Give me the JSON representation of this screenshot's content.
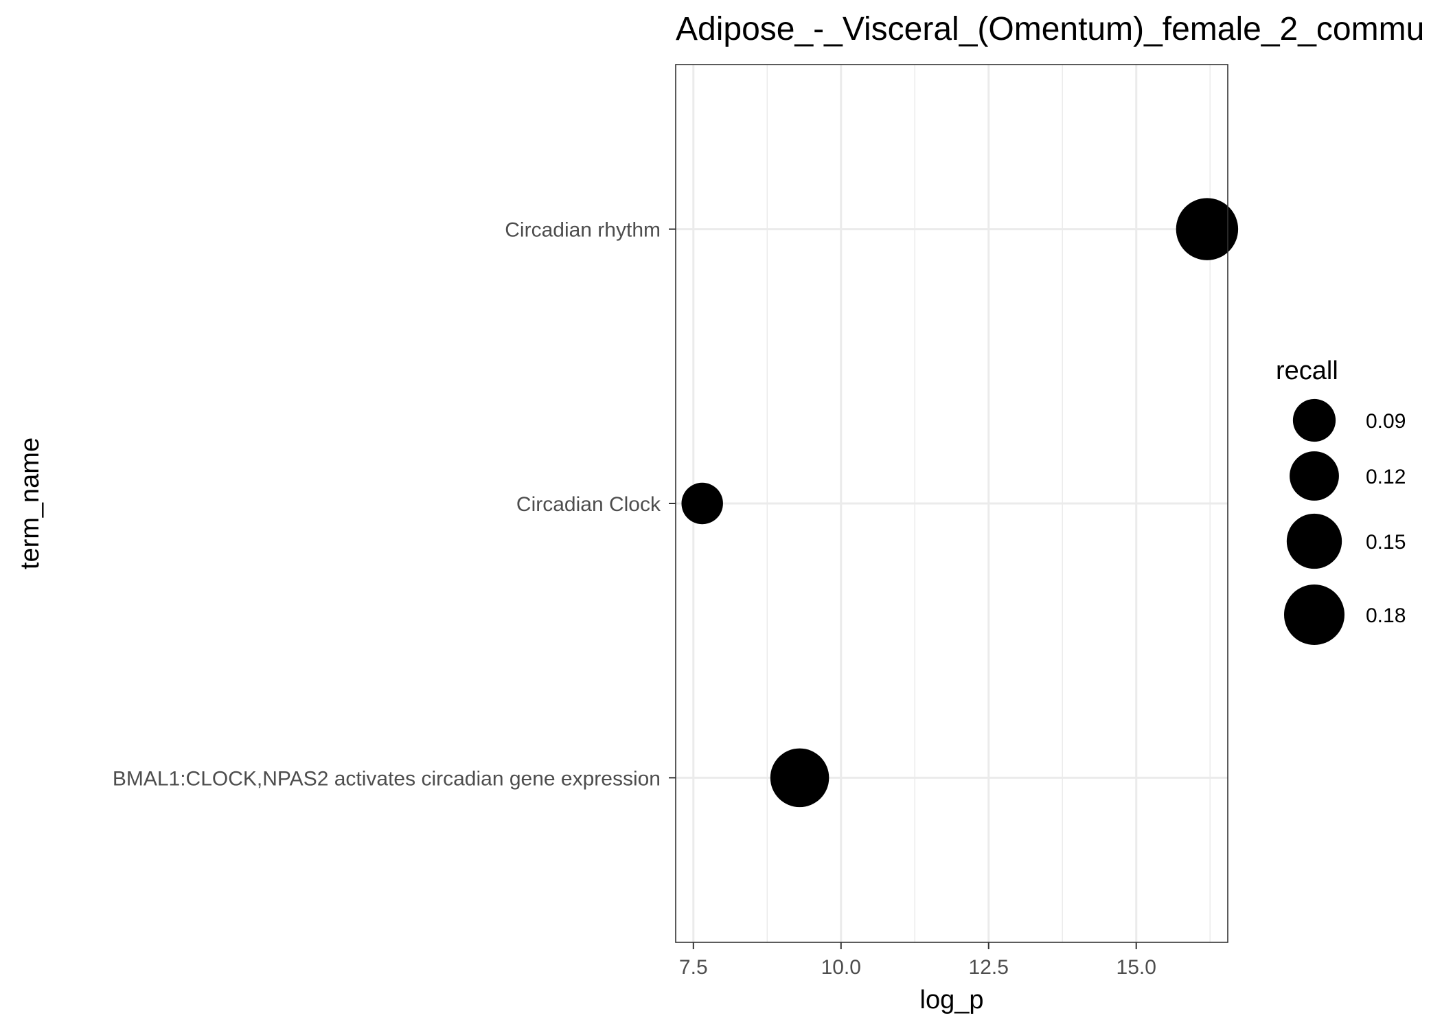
{
  "chart_data": {
    "type": "scatter",
    "title": "Adipose_-_Visceral_(Omentum)_female_2_commu",
    "xlabel": "log_p",
    "ylabel": "term_name",
    "xlim": [
      7.2,
      16.55
    ],
    "x_ticks": [
      7.5,
      10.0,
      12.5,
      15.0
    ],
    "x_tick_labels": [
      "7.5",
      "10.0",
      "12.5",
      "15.0"
    ],
    "categories": [
      "BMAL1:CLOCK,NPAS2 activates circadian gene expression",
      "Circadian Clock",
      "Circadian rhythm"
    ],
    "points": [
      {
        "term_name": "Circadian rhythm",
        "log_p": 16.2,
        "recall": 0.19
      },
      {
        "term_name": "Circadian Clock",
        "log_p": 7.65,
        "recall": 0.085
      },
      {
        "term_name": "BMAL1:CLOCK,NPAS2 activates circadian gene expression",
        "log_p": 9.3,
        "recall": 0.17
      }
    ],
    "size_legend": {
      "title": "recall",
      "breaks": [
        0.09,
        0.12,
        0.15,
        0.18
      ],
      "labels": [
        "0.09",
        "0.12",
        "0.15",
        "0.18"
      ]
    },
    "grid": true,
    "legend_position": "right",
    "colors": {
      "point": "#000000",
      "grid": "#ebebeb",
      "panel_border": "#333333",
      "tick_text": "#4d4d4d"
    }
  }
}
